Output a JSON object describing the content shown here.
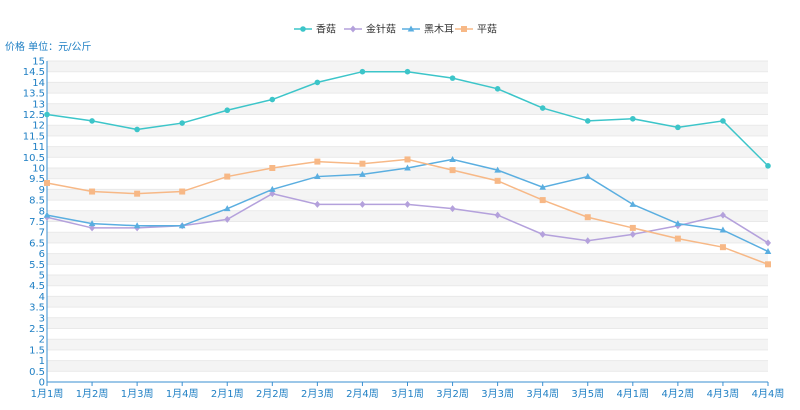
{
  "chart_data": {
    "type": "line",
    "ylabel": "价格 单位：元/公斤",
    "ylim": [
      0,
      15
    ],
    "ytick_step": 0.5,
    "grid": true,
    "legend_position": "top-center",
    "categories": [
      "1月1周",
      "1月2周",
      "1月3周",
      "1月4周",
      "2月1周",
      "2月2周",
      "2月3周",
      "2月4周",
      "3月1周",
      "3月2周",
      "3月3周",
      "3月4周",
      "3月5周",
      "4月1周",
      "4月2周",
      "4月3周",
      "4月4周"
    ],
    "series": [
      {
        "name": "香菇",
        "color": "#3cc5c9",
        "marker": "circle",
        "values": [
          12.5,
          12.2,
          11.8,
          12.1,
          12.7,
          13.2,
          14.0,
          14.5,
          14.5,
          14.2,
          13.7,
          12.8,
          12.2,
          12.3,
          11.9,
          12.2,
          10.1
        ]
      },
      {
        "name": "金针菇",
        "color": "#b4a1dc",
        "marker": "diamond",
        "values": [
          7.7,
          7.2,
          7.2,
          7.3,
          7.6,
          8.8,
          8.3,
          8.3,
          8.3,
          8.1,
          7.8,
          6.9,
          6.6,
          6.9,
          7.3,
          7.8,
          6.5
        ]
      },
      {
        "name": "黑木耳",
        "color": "#5aaee0",
        "marker": "triangle",
        "values": [
          7.8,
          7.4,
          7.3,
          7.3,
          8.1,
          9.0,
          9.6,
          9.7,
          10.0,
          10.4,
          9.9,
          9.1,
          9.6,
          8.3,
          7.4,
          7.1,
          6.1
        ]
      },
      {
        "name": "平菇",
        "color": "#f7b886",
        "marker": "square",
        "values": [
          9.3,
          8.9,
          8.8,
          8.9,
          9.6,
          10.0,
          10.3,
          10.2,
          10.4,
          9.9,
          9.4,
          8.5,
          7.7,
          7.2,
          6.7,
          6.3,
          5.5
        ]
      }
    ]
  }
}
